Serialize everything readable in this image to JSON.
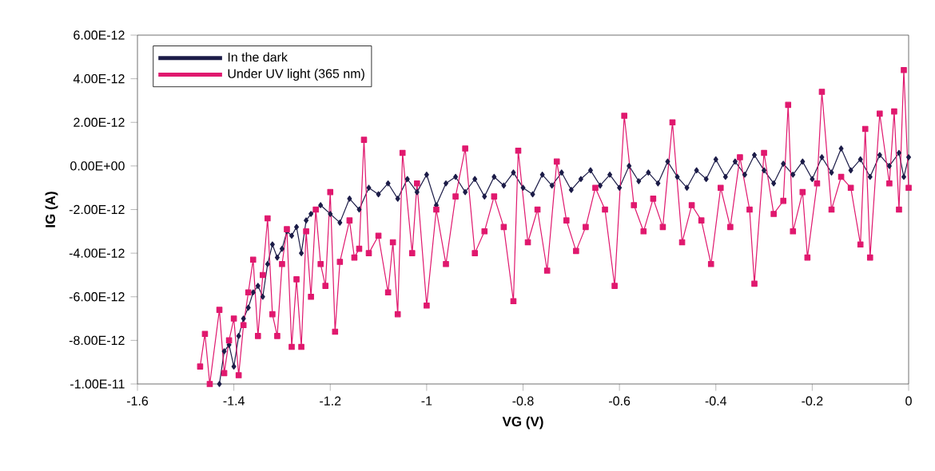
{
  "chart_data": {
    "type": "line",
    "xlabel": "VG (V)",
    "ylabel": "IG (A)",
    "xlim": [
      -1.6,
      0
    ],
    "xticks": [
      -1.6,
      -1.4,
      -1.2,
      -1,
      -0.8,
      -0.6,
      -0.4,
      -0.2,
      0
    ],
    "ylim": [
      -1e-11,
      6e-12
    ],
    "yticks": [
      {
        "value": -1e-11,
        "label": "-1.00E-11"
      },
      {
        "value": -8e-12,
        "label": "-8.00E-12"
      },
      {
        "value": -6e-12,
        "label": "-6.00E-12"
      },
      {
        "value": -4e-12,
        "label": "-4.00E-12"
      },
      {
        "value": -2e-12,
        "label": "-2.00E-12"
      },
      {
        "value": 0,
        "label": "0.00E+00"
      },
      {
        "value": 2e-12,
        "label": "2.00E-12"
      },
      {
        "value": 4e-12,
        "label": "4.00E-12"
      },
      {
        "value": 6e-12,
        "label": "6.00E-12"
      }
    ],
    "grid": false,
    "legend": "top left",
    "series": [
      {
        "name": "In the dark",
        "color": "#1c1c48",
        "marker": "diamond",
        "x": [
          -1.43,
          -1.42,
          -1.41,
          -1.4,
          -1.39,
          -1.38,
          -1.37,
          -1.36,
          -1.35,
          -1.34,
          -1.33,
          -1.32,
          -1.31,
          -1.3,
          -1.29,
          -1.28,
          -1.27,
          -1.26,
          -1.25,
          -1.24,
          -1.22,
          -1.2,
          -1.18,
          -1.16,
          -1.14,
          -1.12,
          -1.1,
          -1.08,
          -1.06,
          -1.04,
          -1.02,
          -1,
          -0.98,
          -0.96,
          -0.94,
          -0.92,
          -0.9,
          -0.88,
          -0.86,
          -0.84,
          -0.82,
          -0.8,
          -0.78,
          -0.76,
          -0.74,
          -0.72,
          -0.7,
          -0.68,
          -0.66,
          -0.64,
          -0.62,
          -0.6,
          -0.58,
          -0.56,
          -0.54,
          -0.52,
          -0.5,
          -0.48,
          -0.46,
          -0.44,
          -0.42,
          -0.4,
          -0.38,
          -0.36,
          -0.34,
          -0.32,
          -0.3,
          -0.28,
          -0.26,
          -0.24,
          -0.22,
          -0.2,
          -0.18,
          -0.16,
          -0.14,
          -0.12,
          -0.1,
          -0.08,
          -0.06,
          -0.04,
          -0.02,
          -0.01,
          0
        ],
        "values": [
          -1e-11,
          -8.5e-12,
          -8.2e-12,
          -9.2e-12,
          -7.8e-12,
          -7e-12,
          -6.5e-12,
          -5.8e-12,
          -5.5e-12,
          -6e-12,
          -4.5e-12,
          -3.6e-12,
          -4.2e-12,
          -3.8e-12,
          -3e-12,
          -3.2e-12,
          -2.8e-12,
          -4e-12,
          -2.5e-12,
          -2.2e-12,
          -1.8e-12,
          -2.2e-12,
          -2.6e-12,
          -1.5e-12,
          -2e-12,
          -1e-12,
          -1.3e-12,
          -8e-13,
          -1.5e-12,
          -6e-13,
          -1.2e-12,
          -4e-13,
          -1.8e-12,
          -8e-13,
          -5e-13,
          -1.2e-12,
          -6e-13,
          -1.4e-12,
          -5e-13,
          -9e-13,
          -3e-13,
          -1e-12,
          -1.3e-12,
          -4e-13,
          -9e-13,
          -3e-13,
          -1.1e-12,
          -6e-13,
          -2e-13,
          -9e-13,
          -4e-13,
          -1e-12,
          0,
          -7e-13,
          -3e-13,
          -8e-13,
          2e-13,
          -5e-13,
          -1e-12,
          -2e-13,
          -6e-13,
          3e-13,
          -5e-13,
          2e-13,
          -4e-13,
          5e-13,
          -2e-13,
          -8e-13,
          1e-13,
          -4e-13,
          2e-13,
          -6e-13,
          4e-13,
          -3e-13,
          8e-13,
          -2e-13,
          3e-13,
          -5e-13,
          5e-13,
          0,
          6e-13,
          -5e-13,
          4e-13
        ]
      },
      {
        "name": "Under UV light (365 nm)",
        "color": "#e0186e",
        "marker": "square",
        "x": [
          -1.47,
          -1.46,
          -1.45,
          -1.43,
          -1.42,
          -1.41,
          -1.4,
          -1.39,
          -1.38,
          -1.37,
          -1.36,
          -1.35,
          -1.34,
          -1.33,
          -1.32,
          -1.31,
          -1.3,
          -1.29,
          -1.28,
          -1.27,
          -1.26,
          -1.25,
          -1.24,
          -1.23,
          -1.22,
          -1.21,
          -1.2,
          -1.19,
          -1.18,
          -1.16,
          -1.15,
          -1.14,
          -1.13,
          -1.12,
          -1.1,
          -1.08,
          -1.07,
          -1.06,
          -1.05,
          -1.03,
          -1.02,
          -1,
          -0.98,
          -0.96,
          -0.94,
          -0.92,
          -0.9,
          -0.88,
          -0.86,
          -0.84,
          -0.82,
          -0.81,
          -0.79,
          -0.77,
          -0.75,
          -0.73,
          -0.71,
          -0.69,
          -0.67,
          -0.65,
          -0.63,
          -0.61,
          -0.59,
          -0.57,
          -0.55,
          -0.53,
          -0.51,
          -0.49,
          -0.47,
          -0.45,
          -0.43,
          -0.41,
          -0.39,
          -0.37,
          -0.35,
          -0.33,
          -0.32,
          -0.3,
          -0.28,
          -0.26,
          -0.25,
          -0.24,
          -0.22,
          -0.21,
          -0.19,
          -0.18,
          -0.16,
          -0.14,
          -0.12,
          -0.1,
          -0.09,
          -0.08,
          -0.06,
          -0.04,
          -0.03,
          -0.02,
          -0.01,
          0
        ],
        "values": [
          -9.2e-12,
          -7.7e-12,
          -1e-11,
          -6.6e-12,
          -9.5e-12,
          -8e-12,
          -7e-12,
          -9.6e-12,
          -7.3e-12,
          -5.8e-12,
          -4.3e-12,
          -7.8e-12,
          -5e-12,
          -2.4e-12,
          -6.8e-12,
          -7.8e-12,
          -4.5e-12,
          -2.9e-12,
          -8.3e-12,
          -5.2e-12,
          -8.3e-12,
          -3e-12,
          -6e-12,
          -2e-12,
          -4.5e-12,
          -5.5e-12,
          -1.2e-12,
          -7.6e-12,
          -4.4e-12,
          -2.5e-12,
          -4.2e-12,
          -3.8e-12,
          1.2e-12,
          -4e-12,
          -3.2e-12,
          -5.8e-12,
          -3.5e-12,
          -6.8e-12,
          6e-13,
          -4e-12,
          -8e-13,
          -6.4e-12,
          -2e-12,
          -4.5e-12,
          -1.4e-12,
          8e-13,
          -4e-12,
          -3e-12,
          -1.4e-12,
          -2.8e-12,
          -6.2e-12,
          7e-13,
          -3.5e-12,
          -2e-12,
          -4.8e-12,
          2e-13,
          -2.5e-12,
          -3.9e-12,
          -2.8e-12,
          -1e-12,
          -2e-12,
          -5.5e-12,
          2.3e-12,
          -1.8e-12,
          -3e-12,
          -1.5e-12,
          -2.8e-12,
          2e-12,
          -3.5e-12,
          -1.8e-12,
          -2.5e-12,
          -4.5e-12,
          -1e-12,
          -2.8e-12,
          4e-13,
          -2e-12,
          -5.4e-12,
          6e-13,
          -2.2e-12,
          -1.6e-12,
          2.8e-12,
          -3e-12,
          -1.2e-12,
          -4.2e-12,
          -8e-13,
          3.4e-12,
          -2e-12,
          -5e-13,
          -1e-12,
          -3.6e-12,
          1.7e-12,
          -4.2e-12,
          2.4e-12,
          -8e-13,
          2.5e-12,
          -2e-12,
          4.4e-12,
          -1e-12
        ]
      }
    ]
  }
}
